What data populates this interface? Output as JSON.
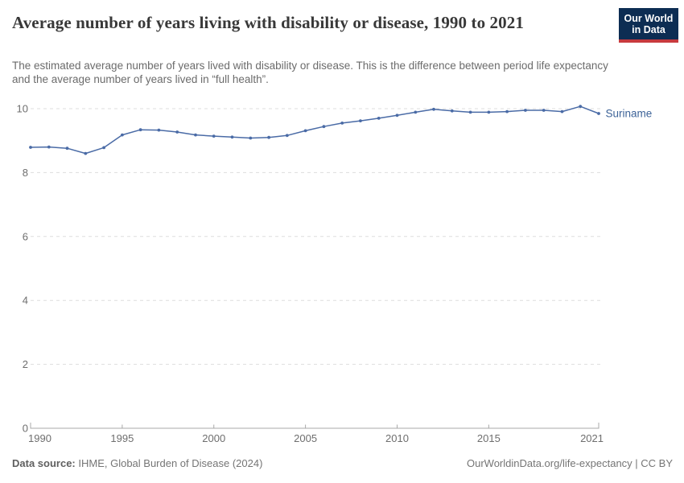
{
  "header": {
    "title": "Average number of years living with disability or disease, 1990 to 2021",
    "subtitle": "The estimated average number of years lived with disability or disease. This is the difference between period life expectancy and the average number of years lived in “full health”.",
    "logo": {
      "line1": "Our World",
      "line2": "in Data"
    }
  },
  "chart_data": {
    "type": "line",
    "title": "Average number of years living with disability or disease, 1990 to 2021",
    "entity_label": "Suriname",
    "x": [
      1990,
      1991,
      1992,
      1993,
      1994,
      1995,
      1996,
      1997,
      1998,
      1999,
      2000,
      2001,
      2002,
      2003,
      2004,
      2005,
      2006,
      2007,
      2008,
      2009,
      2010,
      2011,
      2012,
      2013,
      2014,
      2015,
      2016,
      2017,
      2018,
      2019,
      2020,
      2021
    ],
    "series": [
      {
        "name": "Suriname",
        "values": [
          8.79,
          8.8,
          8.76,
          8.6,
          8.78,
          9.18,
          9.34,
          9.33,
          9.27,
          9.18,
          9.14,
          9.11,
          9.08,
          9.1,
          9.16,
          9.31,
          9.44,
          9.55,
          9.62,
          9.7,
          9.79,
          9.89,
          9.98,
          9.93,
          9.89,
          9.89,
          9.91,
          9.95,
          9.95,
          9.91,
          10.07,
          9.85
        ]
      }
    ],
    "xlabel": "",
    "ylabel": "",
    "xlim": [
      1990,
      2021
    ],
    "ylim": [
      0,
      10
    ],
    "x_ticks": [
      1990,
      1995,
      2000,
      2005,
      2010,
      2015,
      2021
    ],
    "y_ticks": [
      0,
      2,
      4,
      6,
      8,
      10
    ],
    "grid": "horizontal-dashed",
    "legend_position": "end-of-line",
    "units": "years"
  },
  "colors": {
    "line": "#4a6ba6",
    "entity_label": "#3d6398",
    "grid": "#dddddd",
    "axis": "#a8a8a8",
    "tick_label": "#6e6e6e",
    "logo_bg": "#0d2d53",
    "logo_red": "#c73a3e"
  },
  "footer": {
    "source_label": "Data source:",
    "source_text": " IHME, Global Burden of Disease (2024)",
    "link_text": "OurWorldinData.org/life-expectancy | CC BY"
  }
}
